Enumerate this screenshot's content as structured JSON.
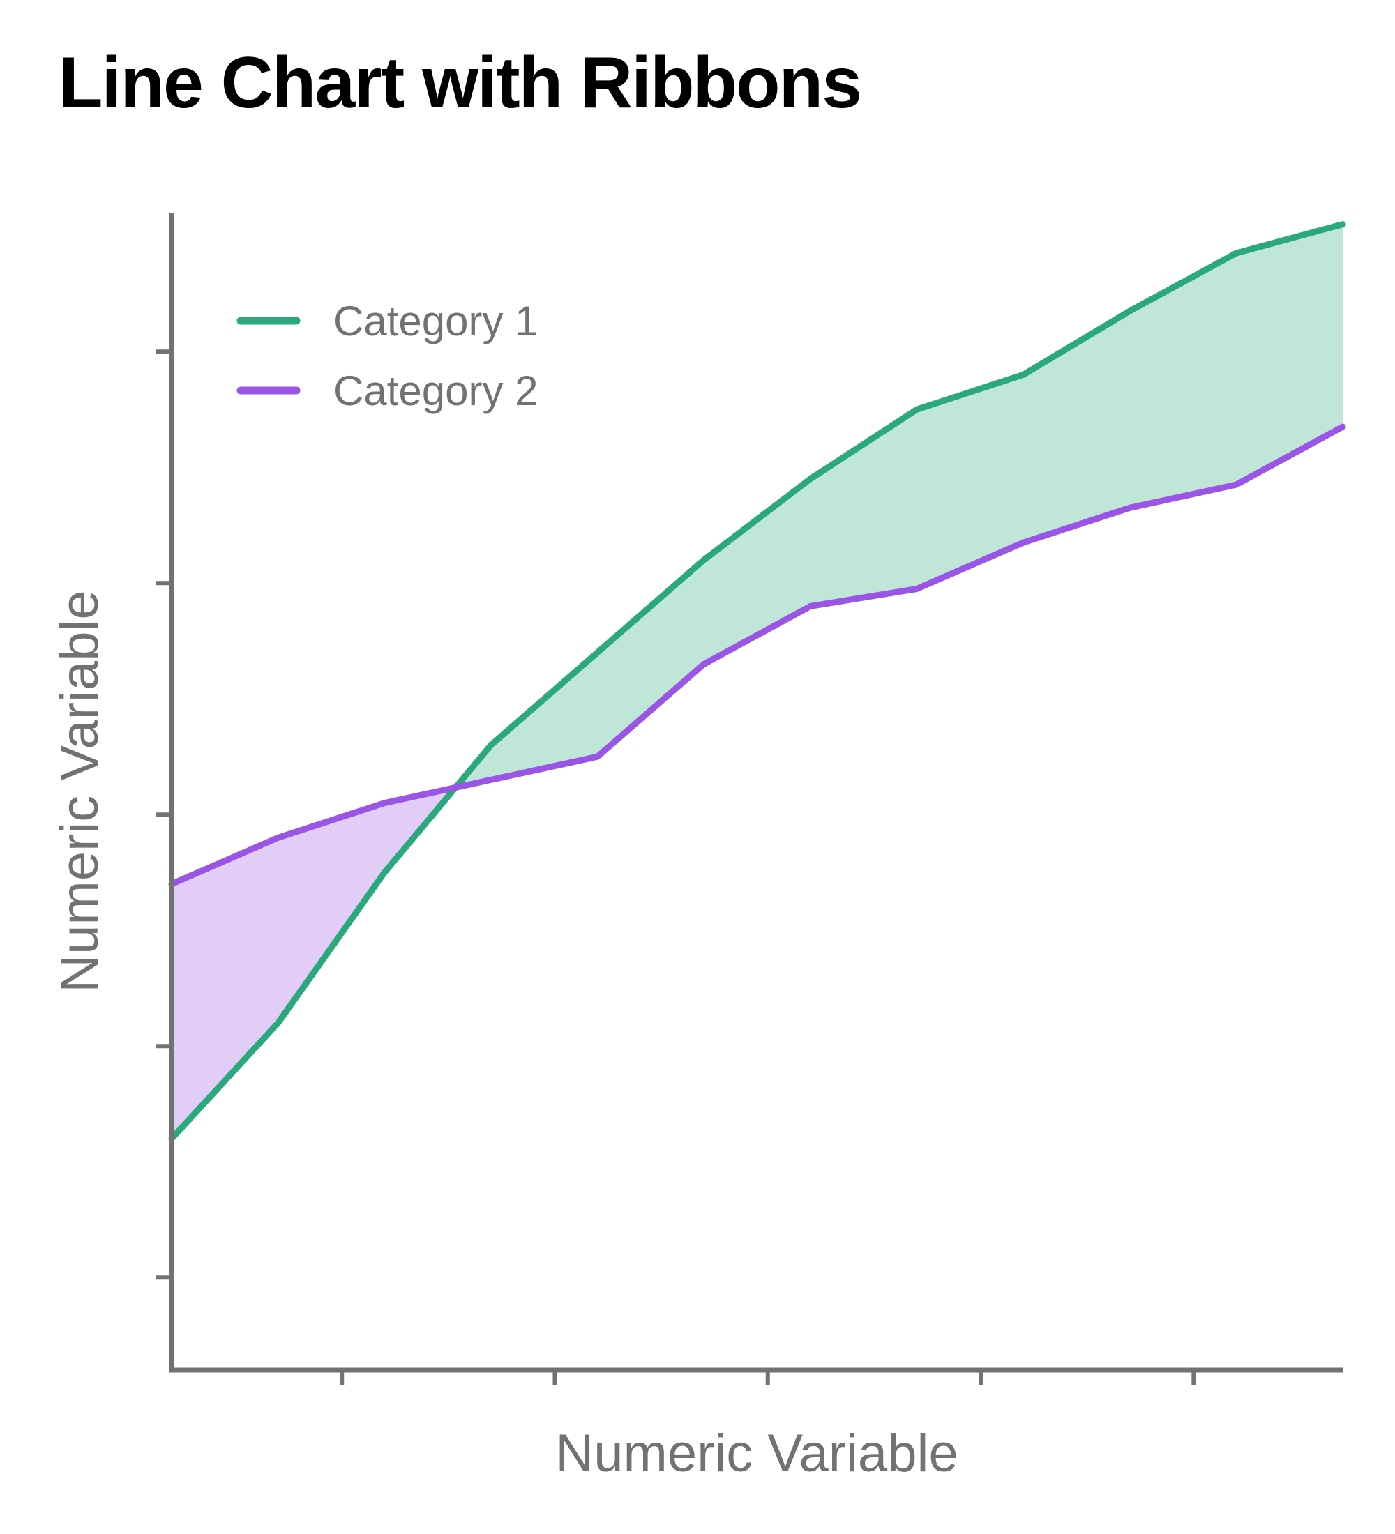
{
  "chart_data": {
    "type": "area",
    "title": "Line Chart with Ribbons",
    "xlabel": "Numeric Variable",
    "ylabel": "Numeric Variable",
    "xlim": [
      0,
      11
    ],
    "ylim": [
      0,
      10
    ],
    "x_ticks": [
      1.6,
      3.6,
      5.6,
      7.6,
      9.6
    ],
    "y_ticks": [
      0.8,
      2.8,
      4.8,
      6.8,
      8.8
    ],
    "show_tick_labels": false,
    "grid": false,
    "legend_position": "top-left",
    "ribbon_between_series": true,
    "x": [
      0,
      1,
      2,
      3,
      4,
      5,
      6,
      7,
      8,
      9,
      10,
      11
    ],
    "series": [
      {
        "name": "Category 1",
        "color": "#2aa87e",
        "ribbon_color": "#c0e6d8",
        "values": [
          2.0,
          3.0,
          4.3,
          5.4,
          6.2,
          7.0,
          7.7,
          8.3,
          8.6,
          9.15,
          9.65,
          9.9
        ]
      },
      {
        "name": "Category 2",
        "color": "#9b55e6",
        "ribbon_color": "#e1cdf6",
        "values": [
          4.2,
          4.6,
          4.9,
          5.1,
          5.3,
          6.1,
          6.6,
          6.75,
          7.15,
          7.45,
          7.65,
          8.15
        ]
      }
    ]
  }
}
